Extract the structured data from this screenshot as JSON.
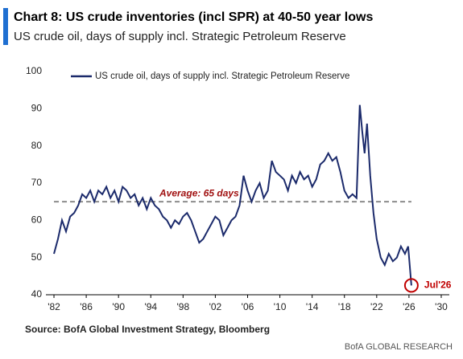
{
  "chart_data": {
    "type": "line",
    "title": "Chart 8: US crude inventories (incl SPR) at 40-50 year lows",
    "subtitle": "US crude oil, days of supply incl. Strategic Petroleum Reserve",
    "x": [
      1982.0,
      1982.5,
      1983.0,
      1983.5,
      1984.0,
      1984.5,
      1985.0,
      1985.5,
      1986.0,
      1986.5,
      1987.0,
      1987.5,
      1988.0,
      1988.5,
      1989.0,
      1989.5,
      1990.0,
      1990.5,
      1991.0,
      1991.5,
      1992.0,
      1992.5,
      1993.0,
      1993.5,
      1994.0,
      1994.5,
      1995.0,
      1995.5,
      1996.0,
      1996.5,
      1997.0,
      1997.5,
      1998.0,
      1998.5,
      1999.0,
      1999.5,
      2000.0,
      2000.5,
      2001.0,
      2001.5,
      2002.0,
      2002.5,
      2003.0,
      2003.5,
      2004.0,
      2004.5,
      2005.0,
      2005.5,
      2006.0,
      2006.5,
      2007.0,
      2007.5,
      2008.0,
      2008.5,
      2009.0,
      2009.5,
      2010.0,
      2010.5,
      2011.0,
      2011.5,
      2012.0,
      2012.5,
      2013.0,
      2013.5,
      2014.0,
      2014.5,
      2015.0,
      2015.5,
      2016.0,
      2016.5,
      2017.0,
      2017.5,
      2018.0,
      2018.5,
      2019.0,
      2019.5,
      2019.9,
      2020.2,
      2020.5,
      2020.8,
      2021.2,
      2021.6,
      2022.0,
      2022.5,
      2023.0,
      2023.5,
      2024.0,
      2024.5,
      2025.0,
      2025.5,
      2025.9,
      2026.3
    ],
    "series": [
      {
        "name": "US crude oil, days of supply incl. Strategic Petroleum Reserve",
        "color": "#1b2a6b",
        "values": [
          51,
          55,
          60,
          57,
          61,
          62,
          64,
          67,
          66,
          68,
          65,
          68,
          67,
          69,
          66,
          68,
          65,
          69,
          68,
          66,
          67,
          64,
          66,
          63,
          66,
          64,
          63,
          61,
          60,
          58,
          60,
          59,
          61,
          62,
          60,
          57,
          54,
          55,
          57,
          59,
          61,
          60,
          56,
          58,
          60,
          61,
          64,
          72,
          68,
          65,
          68,
          70,
          66,
          68,
          76,
          73,
          72,
          71,
          68,
          72,
          70,
          73,
          71,
          72,
          69,
          71,
          75,
          76,
          78,
          76,
          77,
          73,
          68,
          66,
          67,
          66,
          91,
          84,
          78,
          86,
          72,
          62,
          55,
          50,
          48,
          51,
          49,
          50,
          53,
          51,
          53,
          42.5
        ]
      }
    ],
    "xlim": [
      1981,
      2031
    ],
    "ylim": [
      40,
      100
    ],
    "xticks": [
      {
        "value": 1982,
        "label": "'82"
      },
      {
        "value": 1986,
        "label": "'86"
      },
      {
        "value": 1990,
        "label": "'90"
      },
      {
        "value": 1994,
        "label": "'94"
      },
      {
        "value": 1998,
        "label": "'98"
      },
      {
        "value": 2002,
        "label": "'02"
      },
      {
        "value": 2006,
        "label": "'06"
      },
      {
        "value": 2010,
        "label": "'10"
      },
      {
        "value": 2014,
        "label": "'14"
      },
      {
        "value": 2018,
        "label": "'18"
      },
      {
        "value": 2022,
        "label": "'22"
      },
      {
        "value": 2026,
        "label": "'26"
      },
      {
        "value": 2030,
        "label": "'30"
      }
    ],
    "yticks": [
      40,
      50,
      60,
      70,
      80,
      90,
      100
    ],
    "average": {
      "label": "Average: 65 days",
      "value": 65,
      "color": "#8c8c8c"
    },
    "highlight": {
      "label": "Jul'26",
      "color": "#c00000"
    },
    "legend": "top-left",
    "source": "Source: BofA Global Investment Strategy, Bloomberg",
    "brand": "BofA GLOBAL RESEARCH"
  }
}
